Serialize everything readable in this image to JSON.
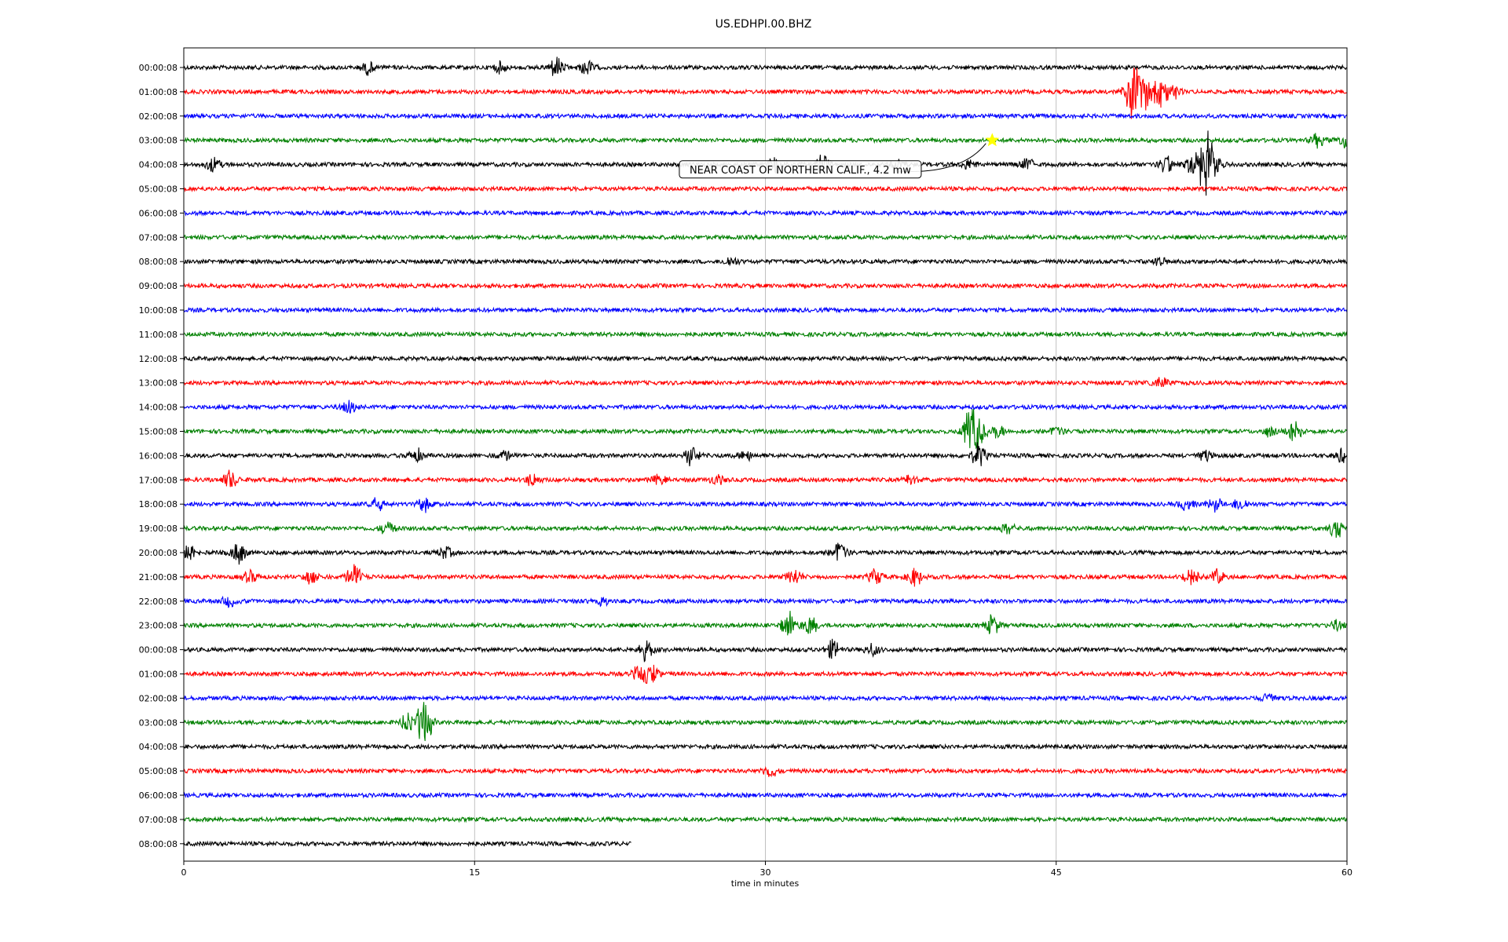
{
  "chart_data": {
    "type": "line",
    "title": "US.EDHPI.00.BHZ",
    "xlabel": "time in minutes",
    "xlim": [
      0,
      60
    ],
    "x_ticks": [
      0,
      15,
      30,
      45,
      60
    ],
    "grid": "vertical",
    "color_cycle": [
      "#000000",
      "#ff0000",
      "#0000ff",
      "#008000"
    ],
    "row_labels": [
      "00:00:08",
      "01:00:08",
      "02:00:08",
      "03:00:08",
      "04:00:08",
      "05:00:08",
      "06:00:08",
      "07:00:08",
      "08:00:08",
      "09:00:08",
      "10:00:08",
      "11:00:08",
      "12:00:08",
      "13:00:08",
      "14:00:08",
      "15:00:08",
      "16:00:08",
      "17:00:08",
      "18:00:08",
      "19:00:08",
      "20:00:08",
      "21:00:08",
      "22:00:08",
      "23:00:08",
      "00:00:08",
      "01:00:08",
      "02:00:08",
      "03:00:08",
      "04:00:08",
      "05:00:08",
      "06:00:08",
      "07:00:08",
      "08:00:08"
    ],
    "last_row_end_minute": 23.1,
    "bursts": [
      {
        "row": 0,
        "minute": 9.5,
        "amp": 0.4
      },
      {
        "row": 0,
        "minute": 16.3,
        "amp": 0.3
      },
      {
        "row": 0,
        "minute": 19.2,
        "amp": 0.7
      },
      {
        "row": 0,
        "minute": 20.8,
        "amp": 0.5
      },
      {
        "row": 1,
        "minute": 48.9,
        "amp": 1.8
      },
      {
        "row": 1,
        "minute": 49.5,
        "amp": 1.3
      },
      {
        "row": 1,
        "minute": 50.3,
        "amp": 1.4
      },
      {
        "row": 1,
        "minute": 51.0,
        "amp": 0.5
      },
      {
        "row": 3,
        "minute": 58.5,
        "amp": 0.4
      },
      {
        "row": 3,
        "minute": 59.9,
        "amp": 0.5
      },
      {
        "row": 4,
        "minute": 1.5,
        "amp": 0.5
      },
      {
        "row": 4,
        "minute": 30.5,
        "amp": 0.6
      },
      {
        "row": 4,
        "minute": 33.0,
        "amp": 0.6
      },
      {
        "row": 4,
        "minute": 36.8,
        "amp": 0.4
      },
      {
        "row": 4,
        "minute": 40.5,
        "amp": 0.3
      },
      {
        "row": 4,
        "minute": 43.5,
        "amp": 0.4
      },
      {
        "row": 4,
        "minute": 50.7,
        "amp": 0.6
      },
      {
        "row": 4,
        "minute": 52.0,
        "amp": 0.6
      },
      {
        "row": 4,
        "minute": 52.7,
        "amp": 2.0
      },
      {
        "row": 4,
        "minute": 53.2,
        "amp": 0.6
      },
      {
        "row": 8,
        "minute": 28.2,
        "amp": 0.3
      },
      {
        "row": 8,
        "minute": 50.3,
        "amp": 0.3
      },
      {
        "row": 13,
        "minute": 50.4,
        "amp": 0.4
      },
      {
        "row": 14,
        "minute": 8.5,
        "amp": 0.4
      },
      {
        "row": 15,
        "minute": 40.6,
        "amp": 1.6
      },
      {
        "row": 15,
        "minute": 41.0,
        "amp": 1.0
      },
      {
        "row": 15,
        "minute": 42.0,
        "amp": 0.4
      },
      {
        "row": 15,
        "minute": 45.0,
        "amp": 0.3
      },
      {
        "row": 15,
        "minute": 56.0,
        "amp": 0.3
      },
      {
        "row": 15,
        "minute": 57.3,
        "amp": 0.6
      },
      {
        "row": 16,
        "minute": 12.0,
        "amp": 0.4
      },
      {
        "row": 16,
        "minute": 16.5,
        "amp": 0.3
      },
      {
        "row": 16,
        "minute": 26.2,
        "amp": 0.6
      },
      {
        "row": 16,
        "minute": 29.0,
        "amp": 0.3
      },
      {
        "row": 16,
        "minute": 41.0,
        "amp": 0.7
      },
      {
        "row": 16,
        "minute": 52.6,
        "amp": 0.4
      },
      {
        "row": 16,
        "minute": 59.8,
        "amp": 0.5
      },
      {
        "row": 17,
        "minute": 2.4,
        "amp": 0.6
      },
      {
        "row": 17,
        "minute": 18.0,
        "amp": 0.4
      },
      {
        "row": 17,
        "minute": 24.5,
        "amp": 0.3
      },
      {
        "row": 17,
        "minute": 27.5,
        "amp": 0.3
      },
      {
        "row": 17,
        "minute": 37.5,
        "amp": 0.3
      },
      {
        "row": 18,
        "minute": 10.0,
        "amp": 0.4
      },
      {
        "row": 18,
        "minute": 12.4,
        "amp": 0.4
      },
      {
        "row": 18,
        "minute": 51.7,
        "amp": 0.4
      },
      {
        "row": 18,
        "minute": 53.2,
        "amp": 0.4
      },
      {
        "row": 18,
        "minute": 54.5,
        "amp": 0.4
      },
      {
        "row": 19,
        "minute": 10.5,
        "amp": 0.4
      },
      {
        "row": 19,
        "minute": 42.5,
        "amp": 0.3
      },
      {
        "row": 19,
        "minute": 59.5,
        "amp": 0.7
      },
      {
        "row": 20,
        "minute": 0.3,
        "amp": 0.5
      },
      {
        "row": 20,
        "minute": 2.8,
        "amp": 0.8
      },
      {
        "row": 20,
        "minute": 13.5,
        "amp": 0.4
      },
      {
        "row": 20,
        "minute": 33.8,
        "amp": 0.8
      },
      {
        "row": 21,
        "minute": 3.4,
        "amp": 0.4
      },
      {
        "row": 21,
        "minute": 6.6,
        "amp": 0.5
      },
      {
        "row": 21,
        "minute": 8.8,
        "amp": 0.8
      },
      {
        "row": 21,
        "minute": 31.5,
        "amp": 0.5
      },
      {
        "row": 21,
        "minute": 35.7,
        "amp": 0.5
      },
      {
        "row": 21,
        "minute": 37.7,
        "amp": 0.6
      },
      {
        "row": 21,
        "minute": 52.0,
        "amp": 0.7
      },
      {
        "row": 21,
        "minute": 53.3,
        "amp": 0.5
      },
      {
        "row": 22,
        "minute": 2.4,
        "amp": 0.4
      },
      {
        "row": 22,
        "minute": 21.5,
        "amp": 0.3
      },
      {
        "row": 23,
        "minute": 31.2,
        "amp": 0.8
      },
      {
        "row": 23,
        "minute": 32.3,
        "amp": 0.6
      },
      {
        "row": 23,
        "minute": 41.7,
        "amp": 0.6
      },
      {
        "row": 23,
        "minute": 59.5,
        "amp": 0.3
      },
      {
        "row": 24,
        "minute": 23.8,
        "amp": 0.6
      },
      {
        "row": 24,
        "minute": 33.5,
        "amp": 0.6
      },
      {
        "row": 24,
        "minute": 35.5,
        "amp": 0.4
      },
      {
        "row": 25,
        "minute": 23.5,
        "amp": 0.5
      },
      {
        "row": 25,
        "minute": 24.1,
        "amp": 0.7
      },
      {
        "row": 26,
        "minute": 56.0,
        "amp": 0.4
      },
      {
        "row": 27,
        "minute": 11.5,
        "amp": 0.5
      },
      {
        "row": 27,
        "minute": 12.4,
        "amp": 1.6
      },
      {
        "row": 29,
        "minute": 30.2,
        "amp": 0.4
      }
    ],
    "annotations": [
      {
        "text": "NEAR COAST OF NORTHERN CALIF., 4.2 mw",
        "row": 3,
        "minute": 41.7,
        "marker": "star",
        "marker_color": "#ffff00",
        "label_row": 4.2,
        "label_minute": 31.8
      }
    ]
  }
}
